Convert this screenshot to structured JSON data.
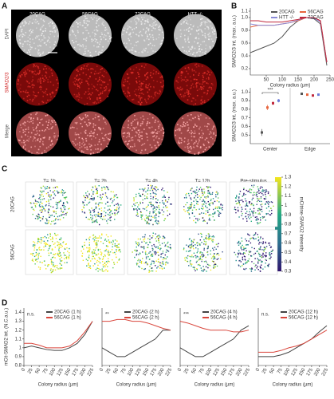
{
  "panel_labels": [
    "A",
    "B",
    "C",
    "D"
  ],
  "panel_a": {
    "columns": [
      "20CAG",
      "56CAG",
      "72CAG",
      "HTT -/-"
    ],
    "rows": [
      "DAPI",
      "SMAD2/3",
      "Merge"
    ]
  },
  "panel_c": {
    "columns": [
      "T= 1h",
      "T= 2h",
      "T= 4h",
      "T= 12h",
      "Pre-stimulus"
    ],
    "rows": [
      "20CAG",
      "56CAG"
    ],
    "colorbar_label": "mCitrine-SMAD2 intensity",
    "colorbar_ticks": [
      0.3,
      0.4,
      0.5,
      0.6,
      0.7,
      0.8,
      0.9,
      1,
      1.1,
      1.2,
      1.3
    ]
  },
  "chart_data": [
    {
      "type": "line",
      "xlabel": "Colony radius (µm)",
      "ylabel": "SMAD2/3 int. (max. a.u.)",
      "x": [
        0,
        25,
        50,
        75,
        100,
        125,
        150,
        175,
        200,
        220,
        240
      ],
      "xlim": [
        0,
        250
      ],
      "xticks": [
        50,
        100,
        150,
        200,
        250
      ],
      "ylim": [
        0.1,
        1.15
      ],
      "yticks": [
        0.2,
        0.4,
        0.6,
        0.8,
        {
          "value": 1,
          "label": "1.0"
        },
        1.1
      ],
      "series": [
        {
          "name": "20CAG",
          "color": "#555555",
          "values": [
            0.45,
            0.5,
            0.55,
            0.6,
            0.7,
            0.85,
            0.95,
            1.0,
            0.98,
            0.9,
            0.25
          ]
        },
        {
          "name": "56CAG",
          "color": "#e8643c",
          "values": [
            0.85,
            0.88,
            0.88,
            0.88,
            0.9,
            0.92,
            0.95,
            1.0,
            1.0,
            0.95,
            0.3
          ]
        },
        {
          "name": "HTT -/-",
          "color": "#8c8cd8",
          "values": [
            0.9,
            0.88,
            0.88,
            0.88,
            0.9,
            0.92,
            0.96,
            1.0,
            0.99,
            0.93,
            0.3
          ]
        },
        {
          "name": "72CAG",
          "color": "#c0283c",
          "values": [
            0.95,
            0.95,
            0.93,
            0.93,
            0.93,
            0.95,
            0.97,
            1.0,
            1.0,
            0.95,
            0.3
          ]
        }
      ]
    },
    {
      "type": "dot",
      "ylabel": "SMAD2/3 int. (max. a.u.)",
      "categories": [
        "Center",
        "Edge"
      ],
      "ylim": [
        0.4,
        1.05
      ],
      "yticks": [
        0.5,
        0.6,
        0.7,
        0.8,
        0.9,
        {
          "value": 1,
          "label": "1.0"
        }
      ],
      "annotation": "***",
      "series": [
        {
          "name": "20CAG",
          "color": "#555555",
          "values": [
            0.53,
            0.98
          ],
          "errors": [
            0.04,
            0.01
          ]
        },
        {
          "name": "56CAG",
          "color": "#e8643c",
          "values": [
            0.82,
            0.97
          ],
          "errors": [
            0.03,
            0.01
          ]
        },
        {
          "name": "72CAG",
          "color": "#c0283c",
          "values": [
            0.87,
            0.96
          ],
          "errors": [
            0.02,
            0.01
          ]
        },
        {
          "name": "HTT -/-",
          "color": "#6a7ad8",
          "values": [
            0.9,
            0.97
          ],
          "errors": [
            0.02,
            0.01
          ]
        }
      ]
    },
    {
      "type": "line",
      "annotation": "n.s.",
      "xlabel": "Colony radius (µm)",
      "ylabel": "mCit-SMAD2 int. (N.C.a.u.)",
      "x": [
        0,
        25,
        50,
        75,
        100,
        125,
        150,
        175,
        200,
        225
      ],
      "xlim": [
        0,
        225
      ],
      "xticks": [
        0,
        25,
        50,
        75,
        100,
        125,
        150,
        175,
        200,
        225
      ],
      "ylim": [
        0.8,
        1.45
      ],
      "yticks": [
        0.8,
        0.9,
        1,
        1.1,
        1.2,
        1.3,
        1.4
      ],
      "series": [
        {
          "name": "20CAG (1 h)",
          "color": "#444444",
          "values": [
            1.0,
            1.02,
            1.0,
            0.98,
            0.97,
            0.97,
            1.0,
            1.05,
            1.15,
            1.3
          ]
        },
        {
          "name": "56CAG (1 h)",
          "color": "#d9463c",
          "values": [
            1.05,
            1.05,
            1.03,
            1.0,
            1.0,
            1.0,
            1.02,
            1.08,
            1.18,
            1.3
          ]
        }
      ]
    },
    {
      "type": "line",
      "annotation": "**",
      "xlabel": "Colony radius (µm)",
      "x": [
        0,
        25,
        50,
        75,
        100,
        125,
        150,
        175,
        200,
        225
      ],
      "xlim": [
        0,
        225
      ],
      "xticks": [
        0,
        25,
        50,
        75,
        100,
        125,
        150,
        175,
        200,
        225
      ],
      "ylim": [
        0.8,
        1.45
      ],
      "series": [
        {
          "name": "20CAG (2 h)",
          "color": "#444444",
          "values": [
            1.0,
            0.95,
            0.9,
            0.9,
            0.95,
            1.0,
            1.05,
            1.1,
            1.2,
            1.2
          ]
        },
        {
          "name": "56CAG (2 h)",
          "color": "#d9463c",
          "values": [
            1.3,
            1.3,
            1.32,
            1.32,
            1.3,
            1.3,
            1.28,
            1.25,
            1.22,
            1.2
          ]
        }
      ]
    },
    {
      "type": "line",
      "annotation": "***",
      "xlabel": "Colony radius (µm)",
      "x": [
        0,
        25,
        50,
        75,
        100,
        125,
        150,
        175,
        200,
        225
      ],
      "xlim": [
        0,
        225
      ],
      "xticks": [
        0,
        25,
        50,
        75,
        100,
        125,
        150,
        175,
        200,
        225
      ],
      "ylim": [
        0.8,
        1.45
      ],
      "series": [
        {
          "name": "20CAG (4 h)",
          "color": "#444444",
          "values": [
            1.0,
            0.95,
            0.9,
            0.9,
            0.95,
            1.0,
            1.05,
            1.1,
            1.2,
            1.25
          ]
        },
        {
          "name": "56CAG (4 h)",
          "color": "#d9463c",
          "values": [
            1.3,
            1.28,
            1.25,
            1.22,
            1.2,
            1.2,
            1.2,
            1.18,
            1.18,
            1.2
          ]
        }
      ]
    },
    {
      "type": "line",
      "annotation": "n.s.",
      "xlabel": "Colony radius (µm)",
      "x": [
        0,
        25,
        50,
        75,
        100,
        125,
        150,
        175,
        200,
        225
      ],
      "xlim": [
        0,
        225
      ],
      "xticks": [
        0,
        25,
        50,
        75,
        100,
        125,
        150,
        175,
        200,
        225
      ],
      "ylim": [
        0.8,
        1.45
      ],
      "series": [
        {
          "name": "20CAG (12 h)",
          "color": "#444444",
          "values": [
            0.9,
            0.9,
            0.9,
            0.92,
            0.95,
            1.0,
            1.05,
            1.1,
            1.18,
            1.25
          ]
        },
        {
          "name": "56CAG (12 h)",
          "color": "#d9463c",
          "values": [
            0.95,
            0.95,
            0.95,
            0.97,
            1.0,
            1.02,
            1.05,
            1.1,
            1.15,
            1.2
          ]
        }
      ]
    }
  ]
}
